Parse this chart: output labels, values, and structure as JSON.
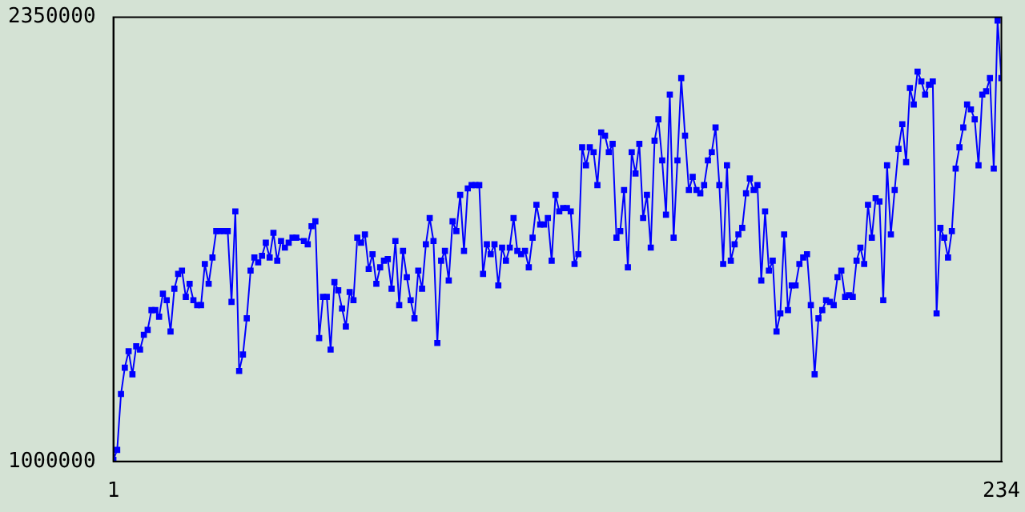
{
  "chart_data": {
    "type": "line",
    "color": "#0000ff",
    "marker": "square",
    "grid": false,
    "legend": false,
    "x": [
      1,
      2,
      3,
      4,
      5,
      6,
      7,
      8,
      9,
      10,
      11,
      12,
      13,
      14,
      15,
      16,
      17,
      18,
      19,
      20,
      21,
      22,
      23,
      24,
      25,
      26,
      27,
      28,
      29,
      30,
      31,
      32,
      33,
      34,
      35,
      36,
      37,
      38,
      39,
      40,
      41,
      42,
      43,
      44,
      45,
      46,
      47,
      48,
      49,
      51,
      52,
      53,
      54,
      55,
      56,
      57,
      58,
      59,
      60,
      61,
      62,
      63,
      64,
      65,
      66,
      67,
      68,
      69,
      70,
      71,
      72,
      73,
      74,
      75,
      76,
      77,
      78,
      79,
      80,
      81,
      82,
      83,
      84,
      85,
      86,
      87,
      88,
      89,
      90,
      91,
      92,
      93,
      94,
      95,
      96,
      97,
      98,
      99,
      100,
      101,
      102,
      103,
      104,
      105,
      106,
      107,
      108,
      109,
      110,
      111,
      112,
      113,
      114,
      115,
      116,
      117,
      118,
      119,
      120,
      121,
      122,
      123,
      124,
      125,
      126,
      127,
      128,
      129,
      130,
      131,
      132,
      133,
      134,
      135,
      136,
      137,
      138,
      139,
      140,
      141,
      142,
      143,
      144,
      145,
      146,
      147,
      148,
      149,
      150,
      151,
      152,
      153,
      154,
      155,
      156,
      157,
      158,
      159,
      160,
      161,
      162,
      163,
      164,
      165,
      166,
      167,
      168,
      169,
      170,
      171,
      172,
      173,
      174,
      175,
      176,
      177,
      178,
      179,
      180,
      181,
      182,
      183,
      184,
      185,
      186,
      187,
      188,
      189,
      190,
      191,
      192,
      193,
      194,
      195,
      196,
      197,
      198,
      199,
      200,
      201,
      202,
      203,
      204,
      205,
      206,
      207,
      208,
      209,
      210,
      211,
      212,
      213,
      214,
      215,
      216,
      217,
      218,
      219,
      220,
      221,
      222,
      223,
      224,
      225,
      226,
      227,
      228,
      229,
      230,
      231,
      232,
      233,
      234
    ],
    "values": [
      1005000,
      1035000,
      1205000,
      1285000,
      1335000,
      1265000,
      1350000,
      1340000,
      1385000,
      1400000,
      1460000,
      1460000,
      1440000,
      1510000,
      1490000,
      1395000,
      1525000,
      1570000,
      1580000,
      1500000,
      1540000,
      1490000,
      1475000,
      1475000,
      1600000,
      1540000,
      1620000,
      1700000,
      1700000,
      1700000,
      1700000,
      1485000,
      1760000,
      1275000,
      1325000,
      1435000,
      1580000,
      1620000,
      1605000,
      1625000,
      1665000,
      1620000,
      1695000,
      1610000,
      1670000,
      1650000,
      1665000,
      1680000,
      1680000,
      1670000,
      1660000,
      1715000,
      1730000,
      1375000,
      1500000,
      1500000,
      1340000,
      1545000,
      1520000,
      1465000,
      1410000,
      1515000,
      1490000,
      1680000,
      1665000,
      1690000,
      1585000,
      1630000,
      1540000,
      1590000,
      1610000,
      1615000,
      1525000,
      1670000,
      1475000,
      1640000,
      1560000,
      1490000,
      1435000,
      1580000,
      1525000,
      1660000,
      1740000,
      1670000,
      1360000,
      1610000,
      1640000,
      1550000,
      1730000,
      1700000,
      1810000,
      1640000,
      1830000,
      1840000,
      1840000,
      1840000,
      1570000,
      1660000,
      1630000,
      1660000,
      1535000,
      1650000,
      1610000,
      1650000,
      1740000,
      1640000,
      1630000,
      1640000,
      1590000,
      1680000,
      1780000,
      1720000,
      1720000,
      1740000,
      1610000,
      1810000,
      1760000,
      1770000,
      1770000,
      1760000,
      1600000,
      1630000,
      1955000,
      1900000,
      1955000,
      1940000,
      1840000,
      2000000,
      1990000,
      1940000,
      1965000,
      1680000,
      1700000,
      1825000,
      1590000,
      1940000,
      1875000,
      1965000,
      1740000,
      1810000,
      1650000,
      1975000,
      2040000,
      1915000,
      1750000,
      2115000,
      1680000,
      1915000,
      2165000,
      1990000,
      1825000,
      1865000,
      1825000,
      1815000,
      1840000,
      1915000,
      1940000,
      2015000,
      1840000,
      1600000,
      1900000,
      1610000,
      1660000,
      1690000,
      1710000,
      1815000,
      1860000,
      1825000,
      1840000,
      1550000,
      1760000,
      1580000,
      1610000,
      1395000,
      1450000,
      1690000,
      1460000,
      1535000,
      1535000,
      1600000,
      1620000,
      1630000,
      1475000,
      1265000,
      1435000,
      1460000,
      1490000,
      1485000,
      1475000,
      1560000,
      1580000,
      1500000,
      1505000,
      1500000,
      1610000,
      1650000,
      1600000,
      1780000,
      1680000,
      1800000,
      1790000,
      1490000,
      1900000,
      1690000,
      1825000,
      1950000,
      2025000,
      1910000,
      2135000,
      2085000,
      2185000,
      2155000,
      2115000,
      2145000,
      2155000,
      1450000,
      1710000,
      1680000,
      1620000,
      1700000,
      1890000,
      1955000,
      2015000,
      2085000,
      2070000,
      2040000,
      1900000,
      2115000,
      2125000,
      2165000,
      1890000,
      2340000,
      2165000
    ],
    "xlim": [
      1,
      234
    ],
    "xticks": [
      1,
      234
    ],
    "ylim": [
      1000000,
      2350000
    ],
    "yticks": [
      1000000,
      2350000
    ]
  }
}
